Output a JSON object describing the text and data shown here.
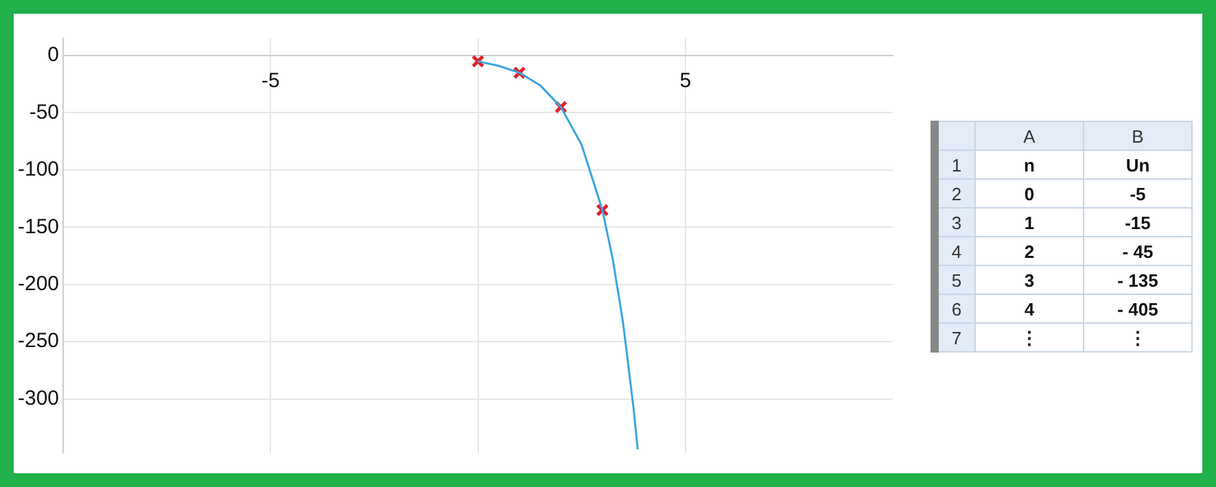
{
  "chart_data": {
    "type": "line",
    "xlim": [
      -10,
      10
    ],
    "xticks": [
      -5,
      {
        "value": 0,
        "label": null
      },
      5
    ],
    "ylim": [
      -347,
      15
    ],
    "yticks": [
      0,
      -50,
      -100,
      -150,
      -200,
      -250,
      -300
    ],
    "grid": true,
    "legend": false,
    "series": [
      {
        "color": "#3aa6e0",
        "marker": "none",
        "x": [
          0,
          0.5,
          1,
          1.5,
          2,
          2.5,
          3,
          3.25,
          3.5,
          3.75,
          3.85
        ],
        "values": [
          -5,
          -9,
          -15,
          -26,
          -45,
          -78,
          -135,
          -178,
          -234,
          -308,
          -344
        ]
      },
      {
        "type": "scatter",
        "color": "#e0202a",
        "marker": "cross",
        "x": [
          0,
          1,
          2,
          3
        ],
        "values": [
          -5,
          -15,
          -45,
          -135
        ]
      }
    ],
    "annotations": [
      "A",
      "B",
      "1",
      "n",
      "Un",
      "2",
      "0",
      "-5",
      "3",
      "1",
      "-15",
      "4",
      "2",
      "- 45",
      "5",
      "3",
      "- 135",
      "6",
      "4",
      "- 405",
      "7",
      "⋮",
      "⋮"
    ]
  }
}
